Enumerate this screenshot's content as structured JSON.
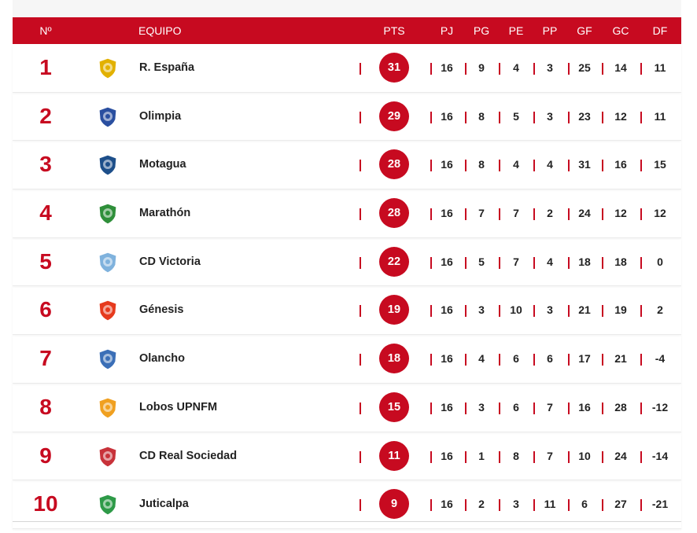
{
  "header": {
    "pos": "Nº",
    "team": "EQUIPO",
    "pts": "PTS",
    "pj": "PJ",
    "pg": "PG",
    "pe": "PE",
    "pp": "PP",
    "gf": "GF",
    "gc": "GC",
    "df": "DF"
  },
  "colors": {
    "accent": "#c70a20"
  },
  "rows": [
    {
      "pos": "1",
      "team": "R. España",
      "crest_icon": "real-espana-crest-icon",
      "crest_color": "#e2b100",
      "pts": "31",
      "pj": "16",
      "pg": "9",
      "pe": "4",
      "pp": "3",
      "gf": "25",
      "gc": "14",
      "df": "11"
    },
    {
      "pos": "2",
      "team": "Olimpia",
      "crest_icon": "olimpia-crest-icon",
      "crest_color": "#2a4fa0",
      "pts": "29",
      "pj": "16",
      "pg": "8",
      "pe": "5",
      "pp": "3",
      "gf": "23",
      "gc": "12",
      "df": "11"
    },
    {
      "pos": "3",
      "team": "Motagua",
      "crest_icon": "motagua-crest-icon",
      "crest_color": "#1d4f8a",
      "pts": "28",
      "pj": "16",
      "pg": "8",
      "pe": "4",
      "pp": "4",
      "gf": "31",
      "gc": "16",
      "df": "15"
    },
    {
      "pos": "4",
      "team": "Marathón",
      "crest_icon": "marathon-crest-icon",
      "crest_color": "#2f8f3a",
      "pts": "28",
      "pj": "16",
      "pg": "7",
      "pe": "7",
      "pp": "2",
      "gf": "24",
      "gc": "12",
      "df": "12"
    },
    {
      "pos": "5",
      "team": "CD Victoria",
      "crest_icon": "victoria-crest-icon",
      "crest_color": "#7fb2dd",
      "pts": "22",
      "pj": "16",
      "pg": "5",
      "pe": "7",
      "pp": "4",
      "gf": "18",
      "gc": "18",
      "df": "0"
    },
    {
      "pos": "6",
      "team": "Génesis",
      "crest_icon": "genesis-crest-icon",
      "crest_color": "#e63a1d",
      "pts": "19",
      "pj": "16",
      "pg": "3",
      "pe": "10",
      "pp": "3",
      "gf": "21",
      "gc": "19",
      "df": "2"
    },
    {
      "pos": "7",
      "team": "Olancho",
      "crest_icon": "olancho-crest-icon",
      "crest_color": "#3b6fb7",
      "pts": "18",
      "pj": "16",
      "pg": "4",
      "pe": "6",
      "pp": "6",
      "gf": "17",
      "gc": "21",
      "df": "-4"
    },
    {
      "pos": "8",
      "team": "Lobos UPNFM",
      "crest_icon": "lobos-crest-icon",
      "crest_color": "#f0a020",
      "pts": "15",
      "pj": "16",
      "pg": "3",
      "pe": "6",
      "pp": "7",
      "gf": "16",
      "gc": "28",
      "df": "-12"
    },
    {
      "pos": "9",
      "team": "CD Real Sociedad",
      "crest_icon": "real-sociedad-crest-icon",
      "crest_color": "#c8323a",
      "pts": "11",
      "pj": "16",
      "pg": "1",
      "pe": "8",
      "pp": "7",
      "gf": "10",
      "gc": "24",
      "df": "-14"
    },
    {
      "pos": "10",
      "team": "Juticalpa",
      "crest_icon": "juticalpa-crest-icon",
      "crest_color": "#2e9a48",
      "pts": "9",
      "pj": "16",
      "pg": "2",
      "pe": "3",
      "pp": "11",
      "gf": "6",
      "gc": "27",
      "df": "-21"
    }
  ]
}
